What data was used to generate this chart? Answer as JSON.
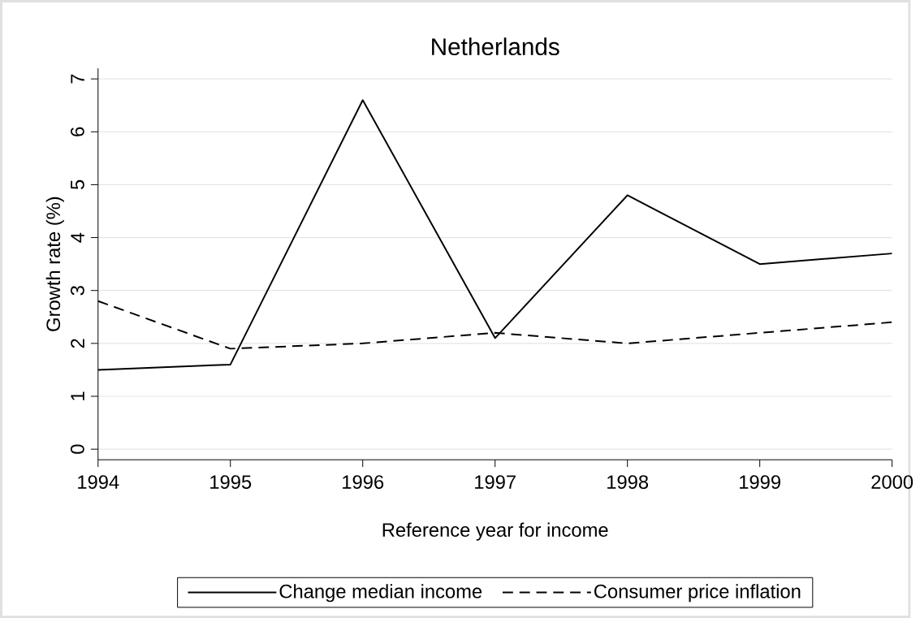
{
  "chart_data": {
    "type": "line",
    "title": "Netherlands",
    "xlabel": "Reference year for income",
    "ylabel": "Growth rate (%)",
    "x": [
      1994,
      1995,
      1996,
      1997,
      1998,
      1999,
      2000
    ],
    "series": [
      {
        "name": "Change median income",
        "color": "#000000",
        "line_style": "solid",
        "values": [
          1.5,
          1.6,
          6.6,
          2.1,
          4.8,
          3.5,
          3.7
        ]
      },
      {
        "name": "Consumer price inflation",
        "color": "#000000",
        "line_style": "dashed",
        "values": [
          2.8,
          1.9,
          2.0,
          2.2,
          2.0,
          2.2,
          2.4
        ]
      }
    ],
    "xlim": [
      1994,
      2000
    ],
    "xticks": [
      1994,
      1995,
      1996,
      1997,
      1998,
      1999,
      2000
    ],
    "ylim": [
      -0.2,
      7.2
    ],
    "yticks": [
      0,
      1,
      2,
      3,
      4,
      5,
      6,
      7
    ],
    "grid": "y",
    "legend": "bottom",
    "marker": "none"
  }
}
